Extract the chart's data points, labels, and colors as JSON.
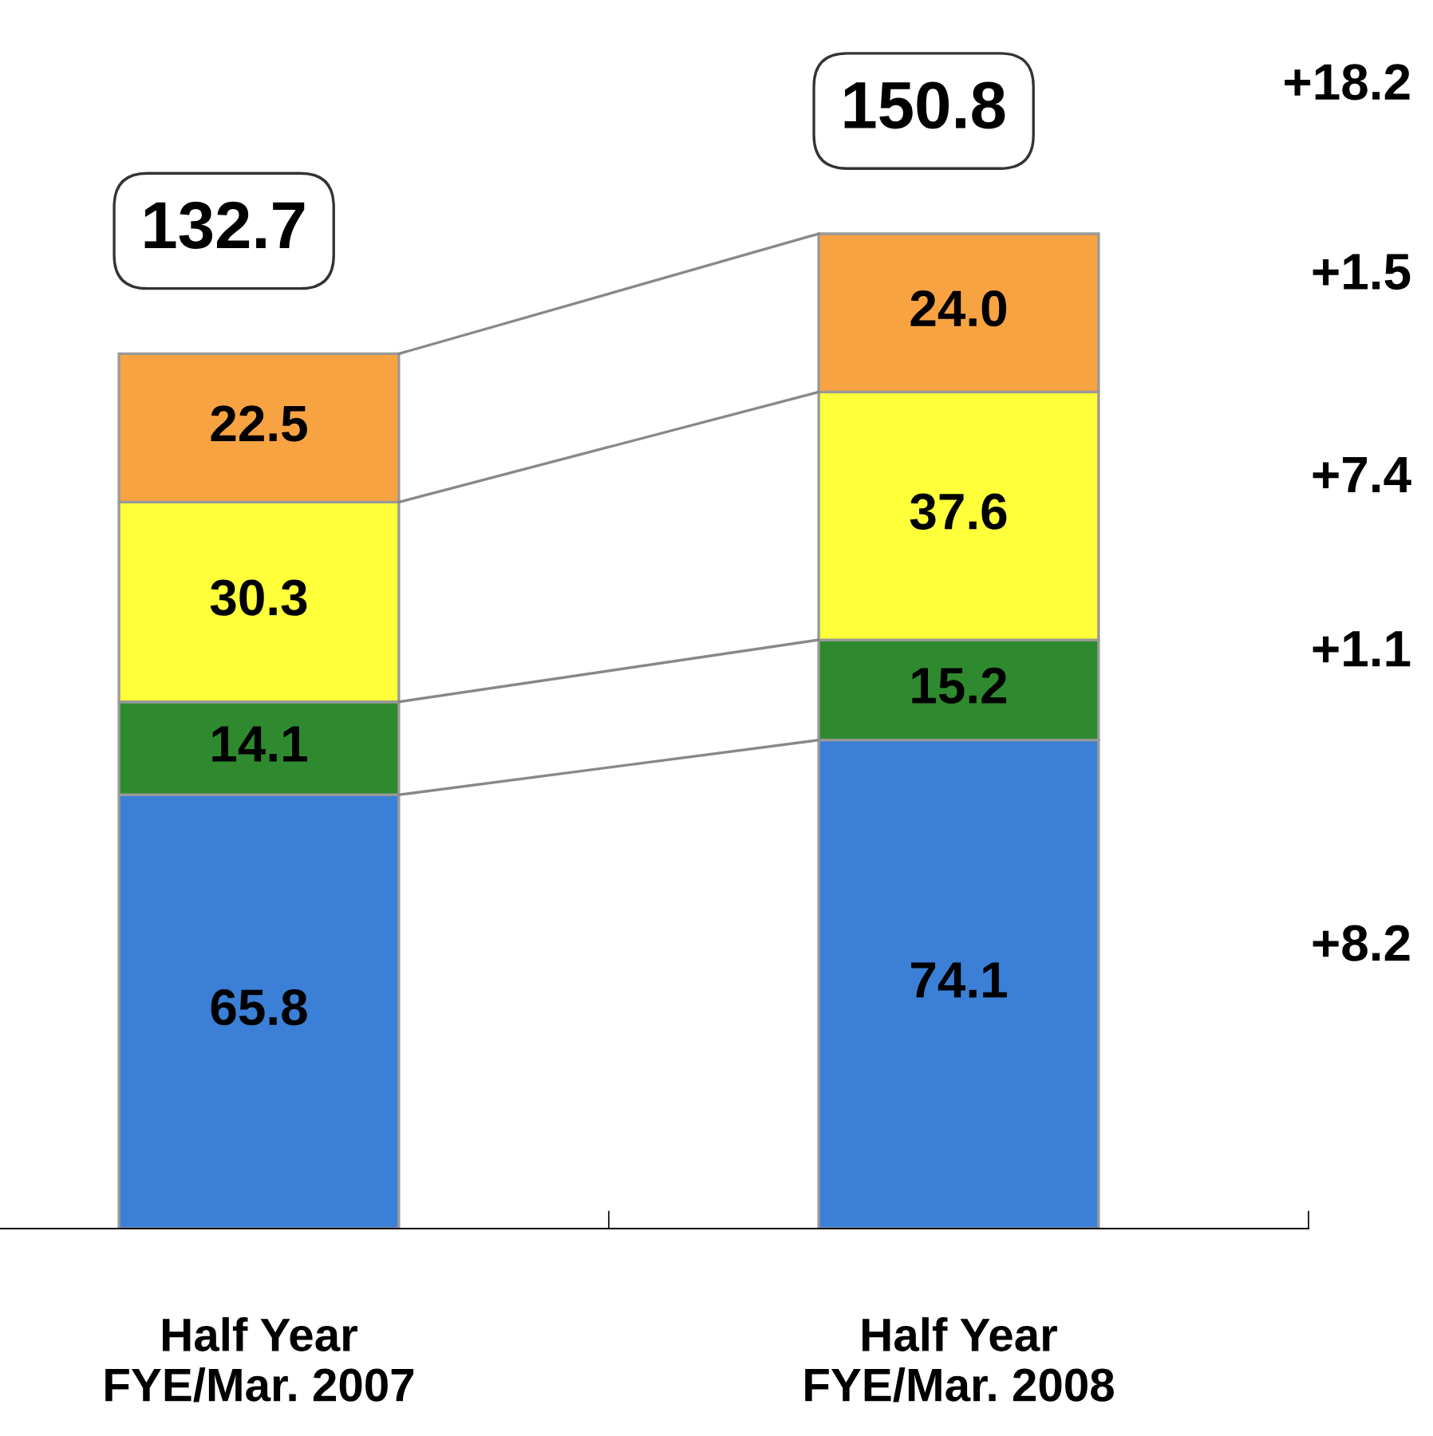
{
  "chart_data": {
    "type": "bar",
    "stacked": true,
    "categories": [
      "Half Year\nFYE/Mar. 2007",
      "Half Year\nFYE/Mar. 2008"
    ],
    "series": [
      {
        "color": "#3b80d6",
        "values": [
          65.8,
          74.1
        ],
        "value_labels": [
          "65.8",
          "74.1"
        ]
      },
      {
        "color": "#2f8a2f",
        "values": [
          14.1,
          15.2
        ],
        "value_labels": [
          "14.1",
          "15.2"
        ]
      },
      {
        "color": "#ffff3a",
        "values": [
          30.3,
          37.6
        ],
        "value_labels": [
          "30.3",
          "37.6"
        ]
      },
      {
        "color": "#f8a342",
        "values": [
          22.5,
          24.0
        ],
        "value_labels": [
          "22.5",
          "24.0"
        ]
      }
    ],
    "totals": [
      "132.7",
      "150.8"
    ],
    "grid": false,
    "legend": false,
    "annotations": [
      "+18.2",
      "+1.5",
      "+7.4",
      "+1.1",
      "+8.2"
    ]
  }
}
